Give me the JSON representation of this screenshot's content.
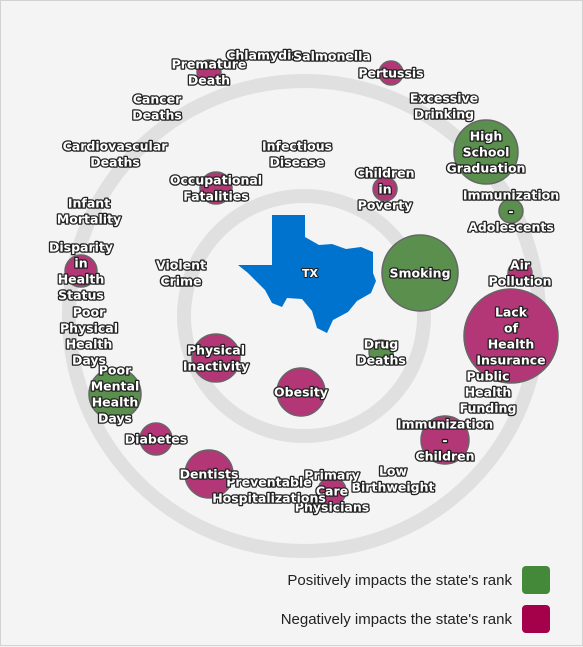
{
  "state": {
    "abbr": "TX",
    "color": "#0073cf"
  },
  "colors": {
    "positive": "#5a8f4e",
    "negative": "#b33676",
    "ring": "#e0e0e0"
  },
  "legend": {
    "positive": {
      "label": "Positively impacts the state's rank",
      "color": "#44883a"
    },
    "negative": {
      "label": "Negatively impacts the state's rank",
      "color": "#a5004a"
    }
  },
  "factors": [
    {
      "id": "infectious-disease",
      "lines": [
        "Infectious",
        "Disease"
      ],
      "impact": "negative",
      "size": "tiny"
    },
    {
      "id": "children-in-poverty",
      "lines": [
        "Children",
        "in",
        "Poverty"
      ],
      "impact": "negative",
      "size": "small"
    },
    {
      "id": "smoking",
      "lines": [
        "Smoking"
      ],
      "impact": "positive",
      "size": "large"
    },
    {
      "id": "drug-deaths",
      "lines": [
        "Drug",
        "Deaths"
      ],
      "impact": "positive",
      "size": "small"
    },
    {
      "id": "obesity",
      "lines": [
        "Obesity"
      ],
      "impact": "negative",
      "size": "medium"
    },
    {
      "id": "physical-inactivity",
      "lines": [
        "Physical",
        "Inactivity"
      ],
      "impact": "negative",
      "size": "medium"
    },
    {
      "id": "violent-crime",
      "lines": [
        "Violent",
        "Crime"
      ],
      "impact": "negative",
      "size": "tiny"
    },
    {
      "id": "occupational-fatalities",
      "lines": [
        "Occupational",
        "Fatalities"
      ],
      "impact": "negative",
      "size": "small"
    },
    {
      "id": "chlamydia",
      "lines": [
        "Chlamydia"
      ],
      "impact": "negative",
      "size": "tiny"
    },
    {
      "id": "salmonella",
      "lines": [
        "Salmonella"
      ],
      "impact": "negative",
      "size": "tiny"
    },
    {
      "id": "pertussis",
      "lines": [
        "Pertussis"
      ],
      "impact": "negative",
      "size": "small"
    },
    {
      "id": "excessive-drinking",
      "lines": [
        "Excessive",
        "Drinking"
      ],
      "impact": "positive",
      "size": "tiny"
    },
    {
      "id": "high-school-graduation",
      "lines": [
        "High",
        "School",
        "Graduation"
      ],
      "impact": "positive",
      "size": "medium"
    },
    {
      "id": "immunization-adolescents",
      "lines": [
        "Immunization",
        "-",
        "Adolescents"
      ],
      "impact": "positive",
      "size": "small"
    },
    {
      "id": "air-pollution",
      "lines": [
        "Air",
        "Pollution"
      ],
      "impact": "negative",
      "size": "small"
    },
    {
      "id": "lack-of-health-insurance",
      "lines": [
        "Lack",
        "of",
        "Health",
        "Insurance"
      ],
      "impact": "negative",
      "size": "xlarge"
    },
    {
      "id": "public-health-funding",
      "lines": [
        "Public",
        "Health",
        "Funding"
      ],
      "impact": "negative",
      "size": "tiny"
    },
    {
      "id": "immunization-children",
      "lines": [
        "Immunization",
        "-",
        "Children"
      ],
      "impact": "negative",
      "size": "medium"
    },
    {
      "id": "low-birthweight",
      "lines": [
        "Low",
        "Birthweight"
      ],
      "impact": "negative",
      "size": "tiny"
    },
    {
      "id": "primary-care-physicians",
      "lines": [
        "Primary",
        "Care",
        "Physicians"
      ],
      "impact": "negative",
      "size": "small"
    },
    {
      "id": "preventable-hospitalizations",
      "lines": [
        "Preventable",
        "Hospitalizations"
      ],
      "impact": "negative",
      "size": "tiny"
    },
    {
      "id": "dentists",
      "lines": [
        "Dentists"
      ],
      "impact": "negative",
      "size": "medium"
    },
    {
      "id": "diabetes",
      "lines": [
        "Diabetes"
      ],
      "impact": "negative",
      "size": "small"
    },
    {
      "id": "poor-mental-health-days",
      "lines": [
        "Poor",
        "Mental",
        "Health",
        "Days"
      ],
      "impact": "positive",
      "size": "medium"
    },
    {
      "id": "poor-physical-health-days",
      "lines": [
        "Poor",
        "Physical",
        "Health",
        "Days"
      ],
      "impact": "positive",
      "size": "tiny"
    },
    {
      "id": "disparity-in-health-status",
      "lines": [
        "Disparity",
        "in",
        "Health",
        "Status"
      ],
      "impact": "negative",
      "size": "small"
    },
    {
      "id": "infant-mortality",
      "lines": [
        "Infant",
        "Mortality"
      ],
      "impact": "negative",
      "size": "tiny"
    },
    {
      "id": "cardiovascular-deaths",
      "lines": [
        "Cardiovascular",
        "Deaths"
      ],
      "impact": "negative",
      "size": "tiny"
    },
    {
      "id": "cancer-deaths",
      "lines": [
        "Cancer",
        "Deaths"
      ],
      "impact": "positive",
      "size": "tiny"
    },
    {
      "id": "premature-death",
      "lines": [
        "Premature",
        "Death"
      ],
      "impact": "negative",
      "size": "small"
    }
  ]
}
